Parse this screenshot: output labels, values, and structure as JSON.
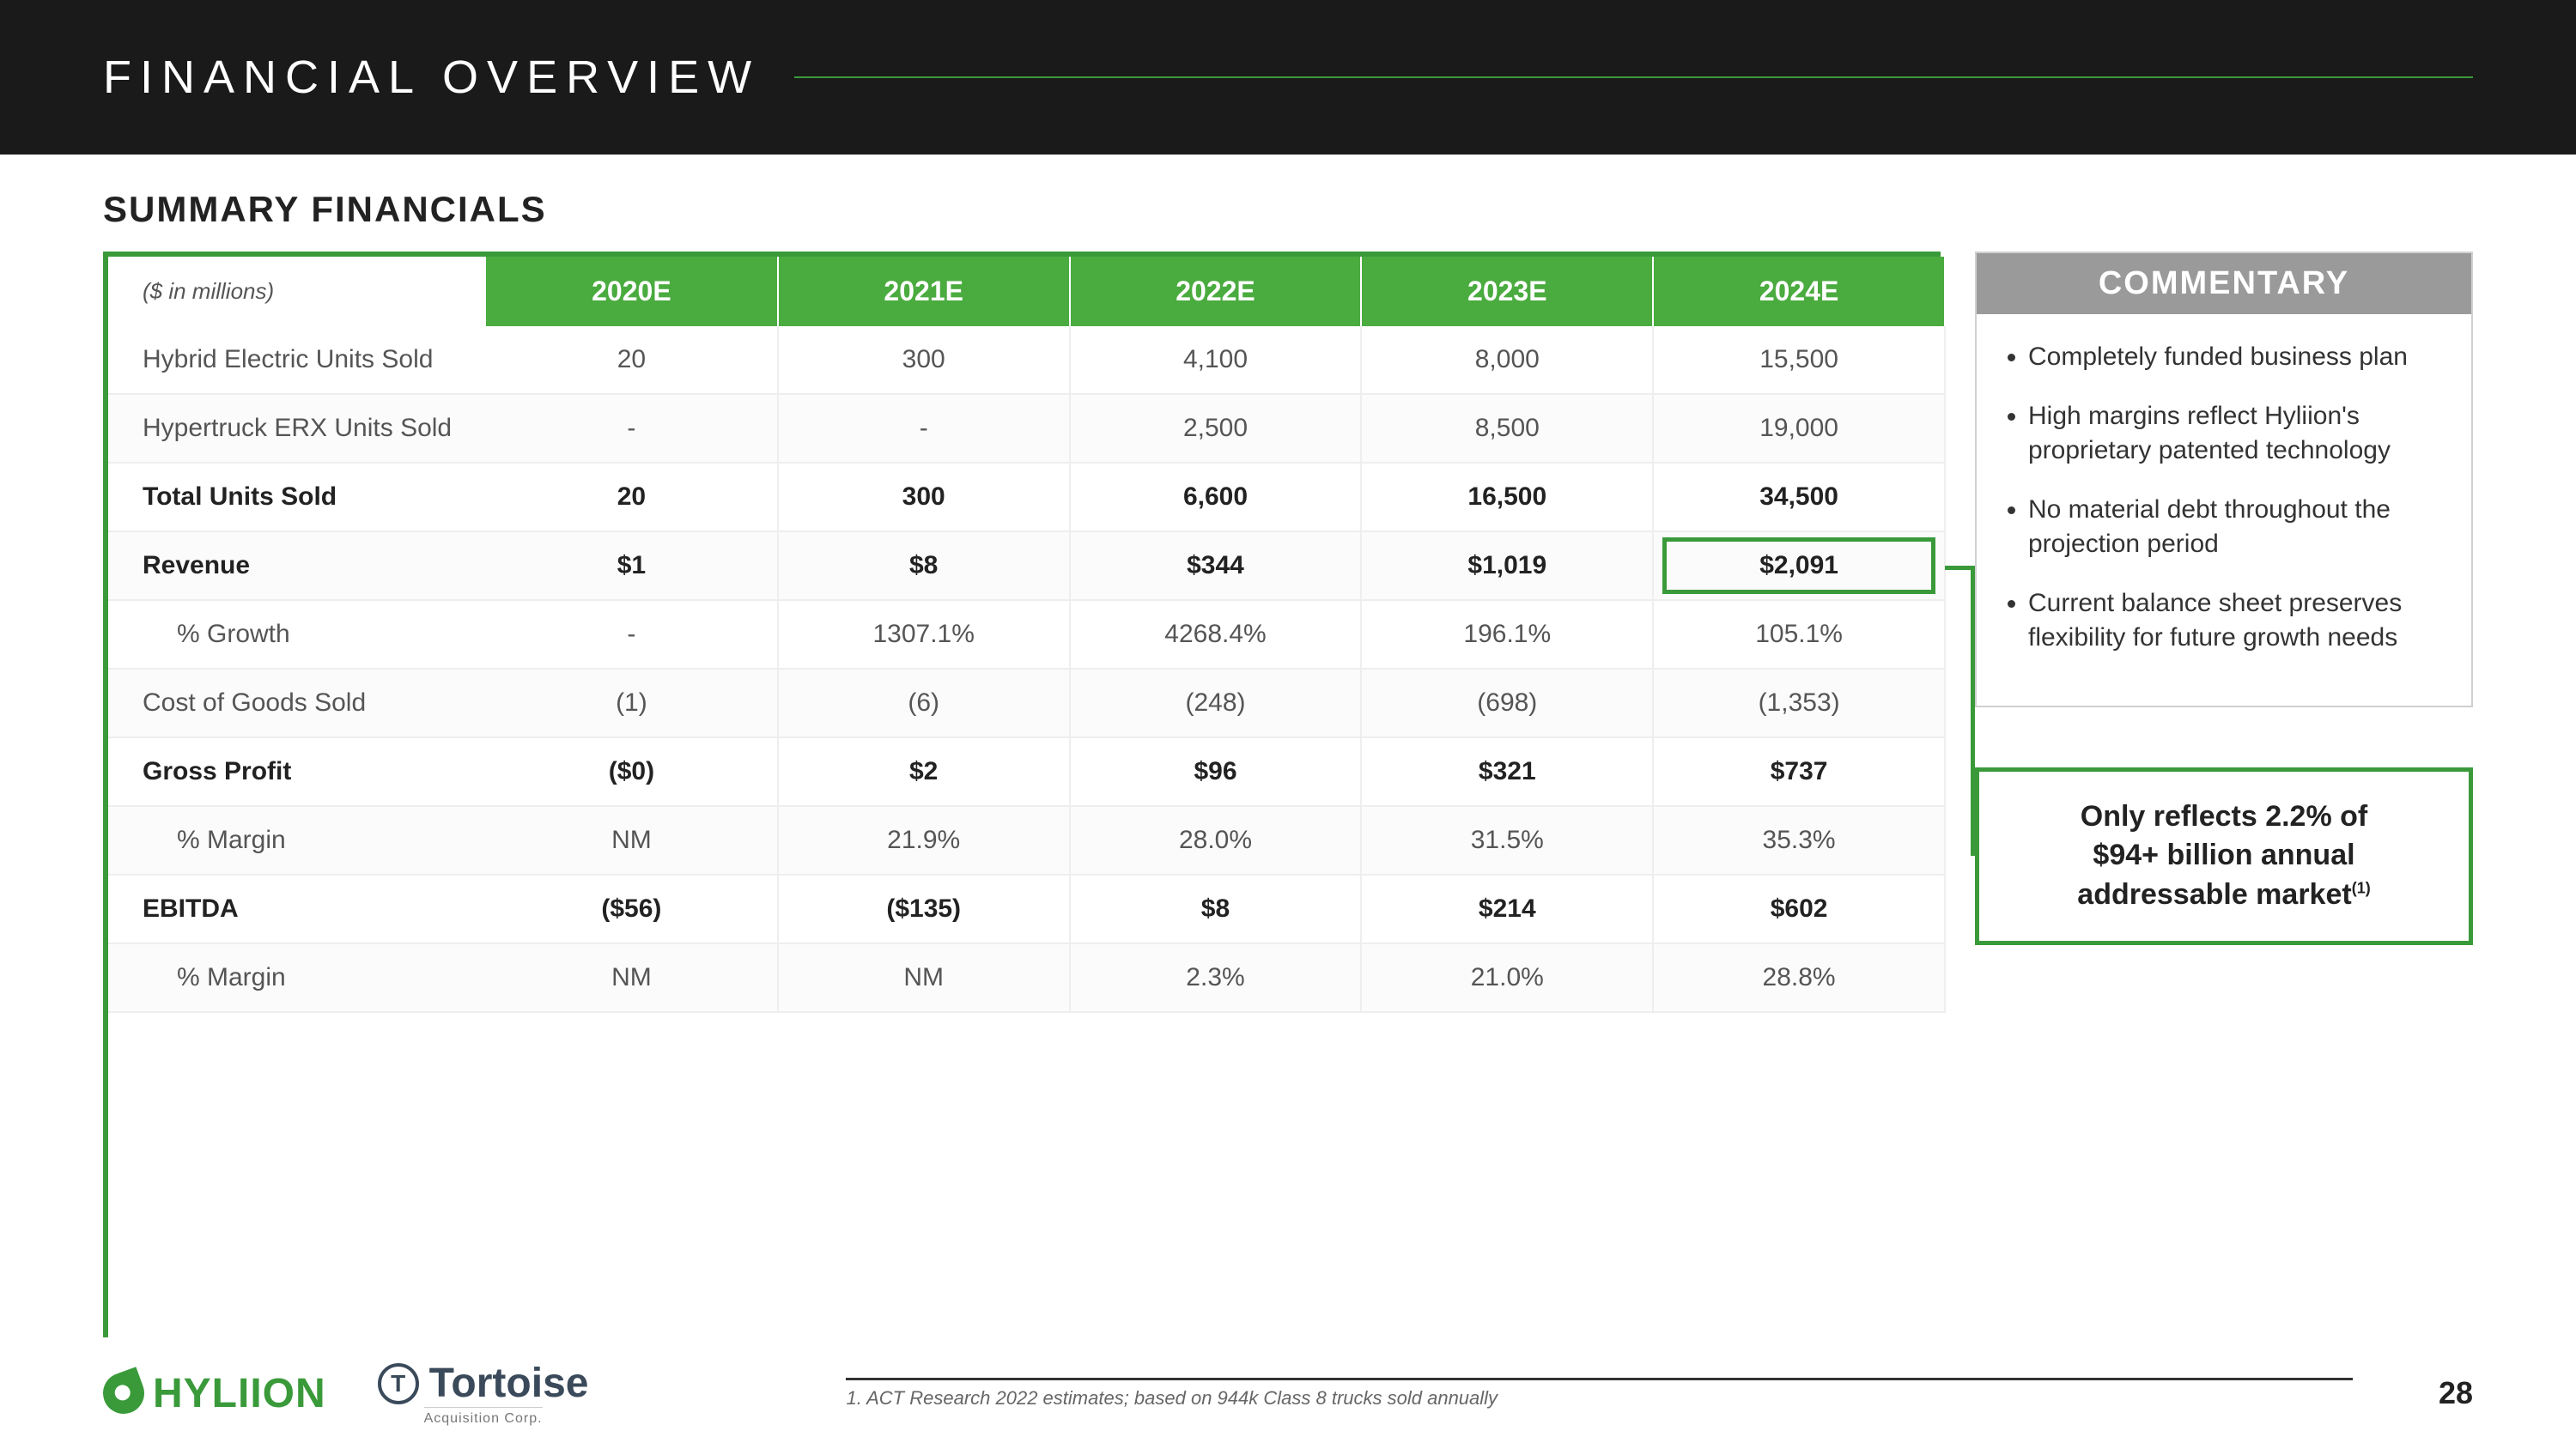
{
  "header": {
    "title": "FINANCIAL  OVERVIEW"
  },
  "subtitle": "SUMMARY FINANCIALS",
  "table": {
    "unit_label": "($ in millions)",
    "columns": [
      "2020E",
      "2021E",
      "2022E",
      "2023E",
      "2024E"
    ],
    "rows": [
      {
        "label": "Hybrid Electric Units Sold",
        "cells": [
          "20",
          "300",
          "4,100",
          "8,000",
          "15,500"
        ],
        "bold": false,
        "indent": false
      },
      {
        "label": "Hypertruck ERX Units Sold",
        "cells": [
          "-",
          "-",
          "2,500",
          "8,500",
          "19,000"
        ],
        "bold": false,
        "indent": false
      },
      {
        "label": "Total Units Sold",
        "cells": [
          "20",
          "300",
          "6,600",
          "16,500",
          "34,500"
        ],
        "bold": true,
        "indent": false
      },
      {
        "label": "Revenue",
        "cells": [
          "$1",
          "$8",
          "$344",
          "$1,019",
          "$2,091"
        ],
        "bold": true,
        "indent": false,
        "highlight_last": true
      },
      {
        "label": "% Growth",
        "cells": [
          "-",
          "1307.1%",
          "4268.4%",
          "196.1%",
          "105.1%"
        ],
        "bold": false,
        "indent": true
      },
      {
        "label": "Cost of Goods Sold",
        "cells": [
          "(1)",
          "(6)",
          "(248)",
          "(698)",
          "(1,353)"
        ],
        "bold": false,
        "indent": false
      },
      {
        "label": "Gross Profit",
        "cells": [
          "($0)",
          "$2",
          "$96",
          "$321",
          "$737"
        ],
        "bold": true,
        "indent": false
      },
      {
        "label": "% Margin",
        "cells": [
          "NM",
          "21.9%",
          "28.0%",
          "31.5%",
          "35.3%"
        ],
        "bold": false,
        "indent": true
      },
      {
        "label": "EBITDA",
        "cells": [
          "($56)",
          "($135)",
          "$8",
          "$214",
          "$602"
        ],
        "bold": true,
        "indent": false
      },
      {
        "label": "% Margin",
        "cells": [
          "NM",
          "NM",
          "2.3%",
          "21.0%",
          "28.8%"
        ],
        "bold": false,
        "indent": true
      }
    ]
  },
  "commentary": {
    "header": "COMMENTARY",
    "items": [
      "Completely funded business plan",
      "High margins reflect Hyliion's proprietary patented technology",
      "No material debt throughout the projection period",
      "Current balance sheet preserves flexibility for future growth needs"
    ]
  },
  "callout": {
    "line1": "Only reflects 2.2% of",
    "line2": "$94+ billion annual",
    "line3": "addressable market",
    "sup": "(1)"
  },
  "footer": {
    "logo1": "HYLIION",
    "logo2": "Tortoise",
    "logo2_sub": "Acquisition Corp.",
    "footnote": "1. ACT Research 2022 estimates; based on 944k Class 8 trucks sold annually",
    "page": "28"
  },
  "colors": {
    "green": "#3a9a3a",
    "header_green": "#4aab3f",
    "dark": "#1a1a1a",
    "grey": "#9a9a9a"
  }
}
